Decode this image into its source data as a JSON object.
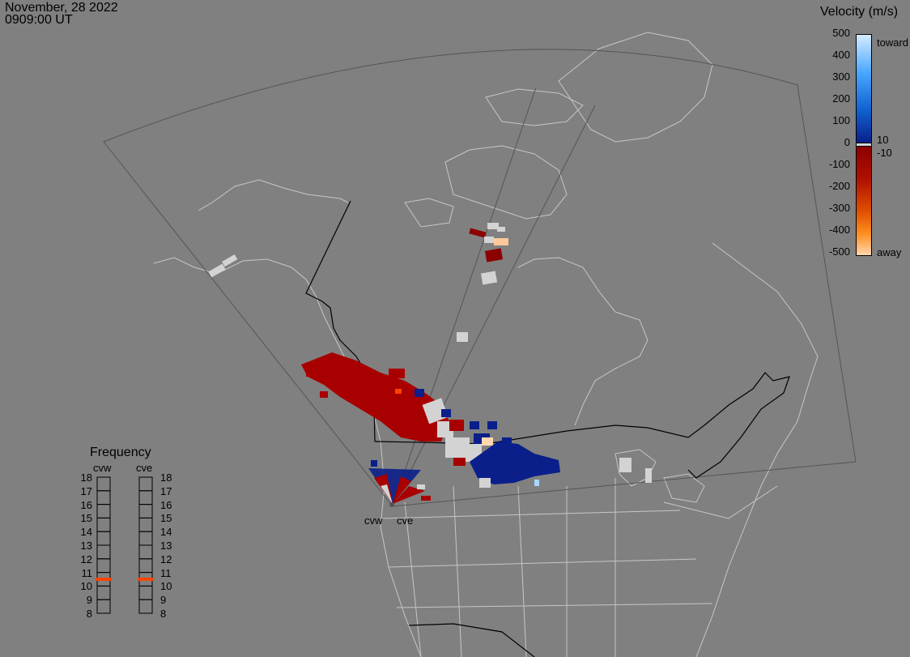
{
  "header": {
    "date": "November, 28 2022",
    "time": "0909:00 UT"
  },
  "velocity_scale": {
    "title": "Velocity (m/s)",
    "ticks": [
      "500",
      "400",
      "300",
      "200",
      "100",
      "0",
      "-100",
      "-200",
      "-300",
      "-400",
      "-500"
    ],
    "inner_ticks": [
      "10",
      "-10"
    ],
    "toward_label": "toward",
    "away_label": "away",
    "colors": {
      "toward_top": "#d6ecff",
      "toward_mid": "#1e90ff",
      "toward_low": "#0a1f8a",
      "away_low": "#8b0000",
      "away_mid": "#ff6a00",
      "away_top": "#ffd8b0",
      "ground_scatter": "#d3d3d3"
    }
  },
  "frequency_panel": {
    "title": "Frequency",
    "radars": [
      {
        "name": "cvw",
        "frequency_mhz": 10.5
      },
      {
        "name": "cve",
        "frequency_mhz": 10.5
      }
    ],
    "scale": [
      "18",
      "17",
      "16",
      "15",
      "14",
      "13",
      "12",
      "11",
      "10",
      "9",
      "8"
    ],
    "marker_color": "#ff4500"
  },
  "radar_sites": [
    {
      "name": "cvw",
      "label": "cvw"
    },
    {
      "name": "cve",
      "label": "cve"
    }
  ],
  "map_colors": {
    "background": "#808080",
    "coastline": "#c8c8c8",
    "fov_outline": "#555555",
    "border_black": "#000000"
  }
}
